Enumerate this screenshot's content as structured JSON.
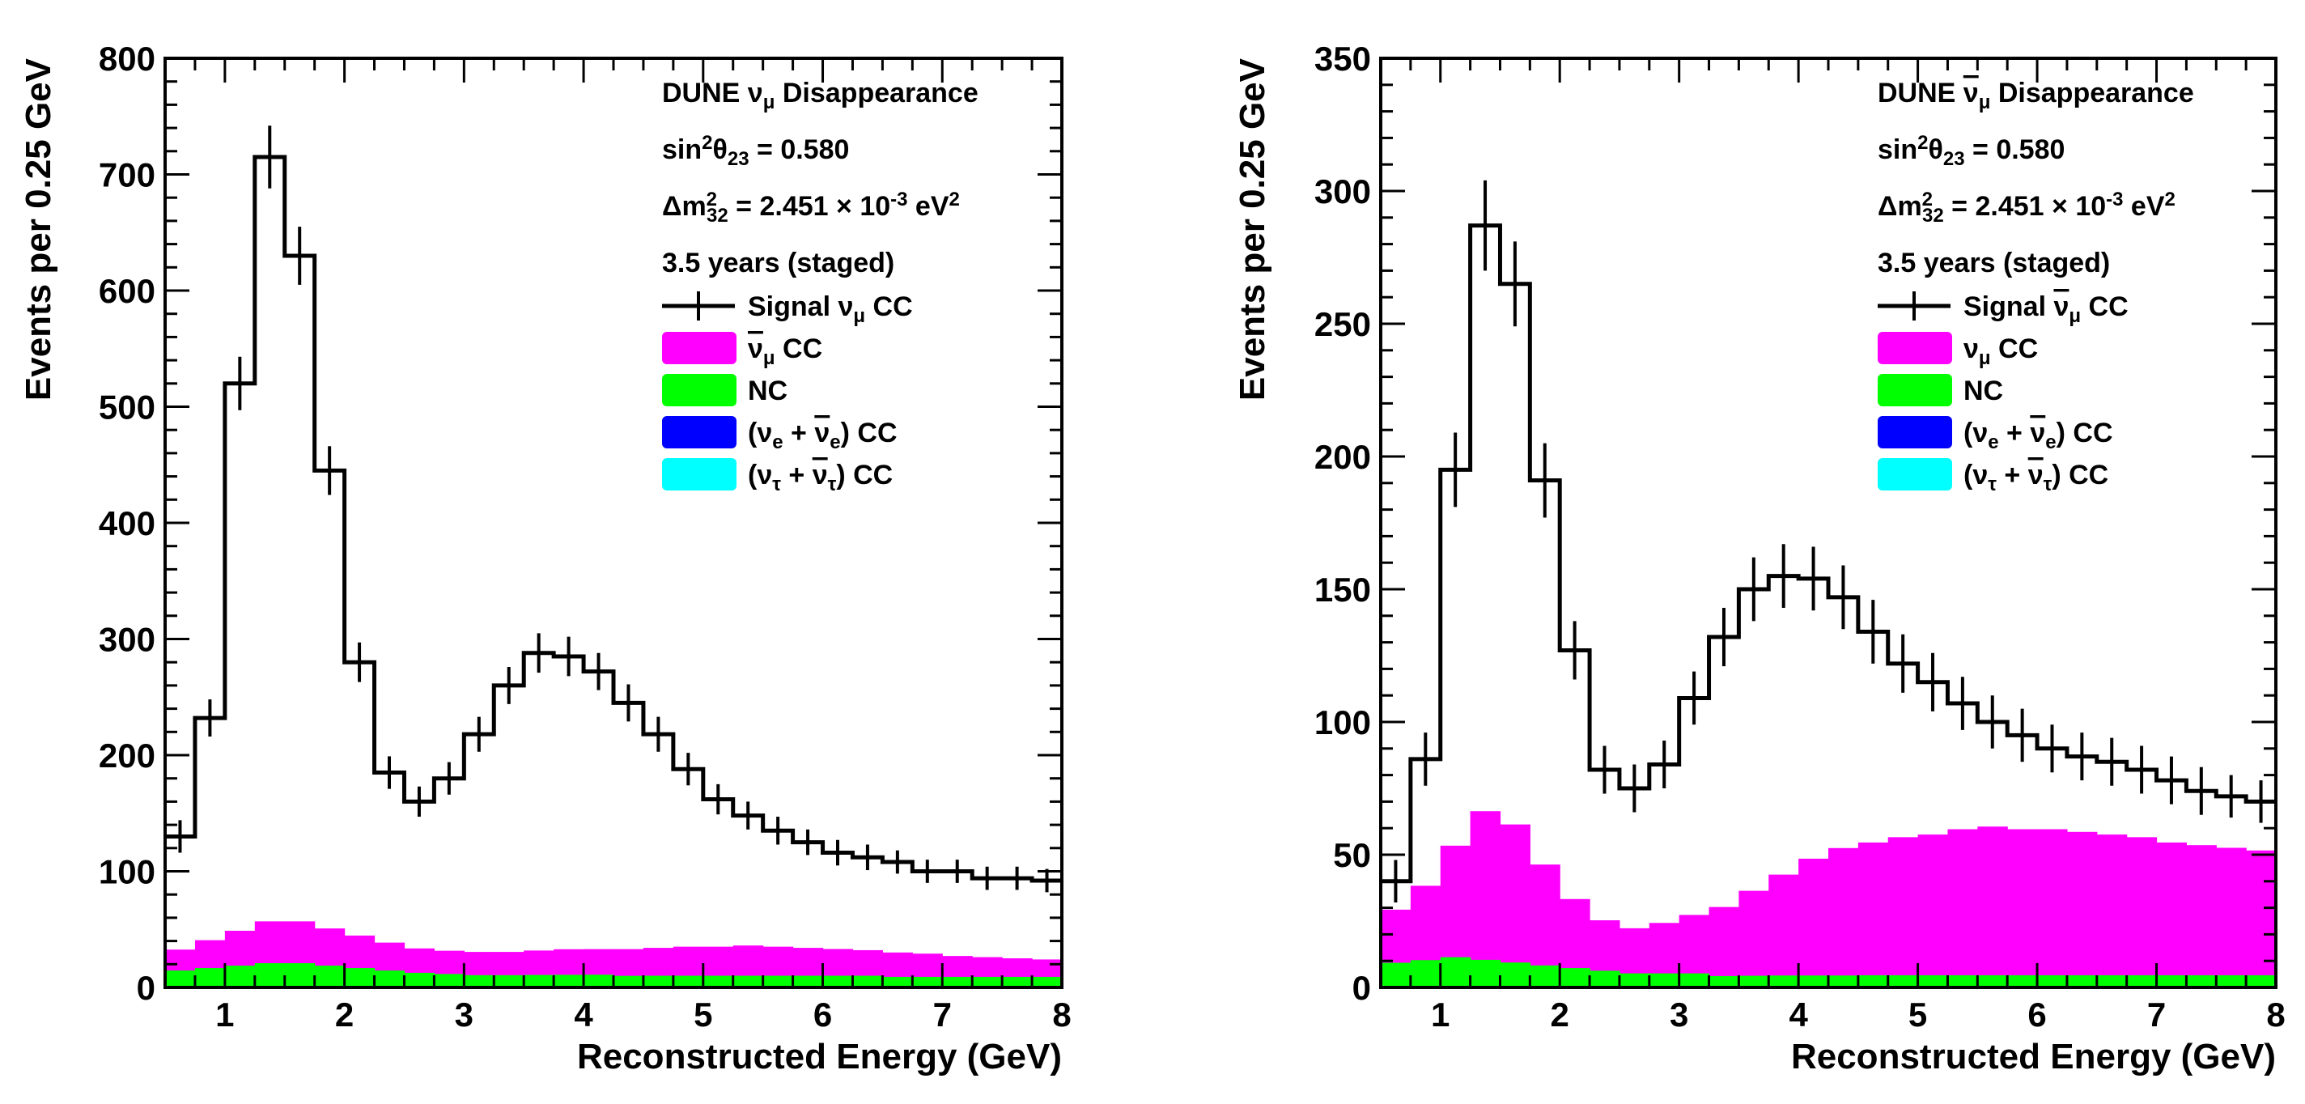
{
  "chart_data": [
    {
      "type": "bar",
      "title": "DUNE ν_μ Disappearance",
      "xlabel": "Reconstructed Energy (GeV)",
      "ylabel": "Events per 0.25 GeV",
      "xlim": [
        0.5,
        8
      ],
      "ylim": [
        0,
        800
      ],
      "x_ticks": [
        1,
        2,
        3,
        4,
        5,
        6,
        7,
        8
      ],
      "y_ticks": [
        0,
        100,
        200,
        300,
        400,
        500,
        600,
        700,
        800
      ],
      "bin_edges": [
        0.5,
        0.75,
        1.0,
        1.25,
        1.5,
        1.75,
        2.0,
        2.25,
        2.5,
        2.75,
        3.0,
        3.25,
        3.5,
        3.75,
        4.0,
        4.25,
        4.5,
        4.75,
        5.0,
        5.25,
        5.5,
        5.75,
        6.0,
        6.25,
        6.5,
        6.75,
        7.0,
        7.25,
        7.5,
        7.75,
        8.0
      ],
      "annotations": {
        "title": {
          "pre": "DUNE ",
          "sym": "ν",
          "sub": "μ",
          "post": " Disappearance",
          "bar": false
        },
        "sin2": {
          "pre": "sin",
          "sup": "2",
          "mid": "θ",
          "sub": "23",
          "post": " = 0.580"
        },
        "dm2": {
          "pre": "Δm",
          "sup": "2",
          "sub": "32",
          "mid": " = 2.451 × 10",
          "exp": "-3",
          "unit": " eV",
          "unit_sup": "2"
        },
        "exposure": "3.5 years (staged)"
      },
      "series": [
        {
          "name": "Signal ν_μ CC",
          "legend": {
            "pre": "Signal ",
            "sym": "ν",
            "sub": "μ",
            "post": " CC",
            "bar": false
          },
          "style": "errorbar-step",
          "color": "#000000",
          "values": [
            130,
            232,
            520,
            715,
            630,
            445,
            280,
            185,
            160,
            180,
            218,
            260,
            288,
            285,
            272,
            245,
            218,
            188,
            162,
            148,
            135,
            125,
            116,
            112,
            108,
            100,
            100,
            94,
            94,
            92
          ],
          "errors": [
            14,
            16,
            23,
            27,
            25,
            21,
            17,
            14,
            13,
            14,
            15,
            16,
            17,
            17,
            16,
            16,
            15,
            14,
            13,
            12,
            12,
            11,
            11,
            11,
            10,
            10,
            10,
            10,
            10,
            10
          ]
        },
        {
          "name": "ν̄_μ CC",
          "legend": {
            "pre": "",
            "sym": "ν",
            "sub": "μ",
            "post": " CC",
            "bar": true
          },
          "style": "filled",
          "color": "#ff00ff",
          "values": [
            18,
            24,
            30,
            36,
            36,
            32,
            28,
            24,
            21,
            20,
            20,
            20,
            21,
            22,
            22,
            23,
            24,
            25,
            25,
            26,
            25,
            24,
            23,
            22,
            21,
            20,
            18,
            17,
            16,
            15
          ]
        },
        {
          "name": "NC",
          "legend": {
            "pre": "NC",
            "sym": "",
            "sub": "",
            "post": "",
            "bar": false
          },
          "style": "filled",
          "color": "#00ff00",
          "values": [
            14,
            16,
            18,
            20,
            20,
            18,
            16,
            14,
            12,
            11,
            10,
            10,
            10,
            10,
            10,
            9,
            9,
            9,
            9,
            9,
            9,
            9,
            9,
            9,
            8,
            8,
            8,
            8,
            8,
            8
          ]
        },
        {
          "name": "(ν_e + ν̄_e) CC",
          "legend": {
            "pre": "(ν",
            "sub": "e",
            "mid": " + ",
            "sym": "ν",
            "sub2": "e",
            "post": ") CC"
          },
          "style": "filled",
          "color": "#0000ff",
          "values": [
            0.6,
            0.7,
            0.8,
            0.9,
            0.9,
            0.8,
            0.7,
            0.6,
            0.6,
            0.6,
            0.6,
            0.6,
            0.6,
            0.6,
            0.6,
            0.6,
            0.6,
            0.6,
            0.6,
            0.6,
            0.6,
            0.6,
            0.6,
            0.6,
            0.6,
            0.6,
            0.6,
            0.6,
            0.6,
            0.6
          ]
        },
        {
          "name": "(ν_τ + ν̄_τ) CC",
          "legend": {
            "pre": "(ν",
            "sub": "τ",
            "mid": " + ",
            "sym": "ν",
            "sub2": "τ",
            "post": ") CC"
          },
          "style": "filled",
          "color": "#00ffff",
          "values": [
            0,
            0,
            0,
            0,
            0,
            0,
            0,
            0,
            0,
            0,
            0,
            0,
            0.2,
            0.3,
            0.4,
            0.4,
            0.5,
            0.5,
            0.5,
            0.5,
            0.5,
            0.5,
            0.5,
            0.5,
            0.5,
            0.5,
            0.5,
            0.5,
            0.5,
            0.5
          ]
        }
      ]
    },
    {
      "type": "bar",
      "title": "DUNE ν̄_μ Disappearance",
      "xlabel": "Reconstructed Energy (GeV)",
      "ylabel": "Events per 0.25 GeV",
      "xlim": [
        0.5,
        8
      ],
      "ylim": [
        0,
        350
      ],
      "x_ticks": [
        1,
        2,
        3,
        4,
        5,
        6,
        7,
        8
      ],
      "y_ticks": [
        0,
        50,
        100,
        150,
        200,
        250,
        300,
        350
      ],
      "bin_edges": [
        0.5,
        0.75,
        1.0,
        1.25,
        1.5,
        1.75,
        2.0,
        2.25,
        2.5,
        2.75,
        3.0,
        3.25,
        3.5,
        3.75,
        4.0,
        4.25,
        4.5,
        4.75,
        5.0,
        5.25,
        5.5,
        5.75,
        6.0,
        6.25,
        6.5,
        6.75,
        7.0,
        7.25,
        7.5,
        7.75,
        8.0
      ],
      "annotations": {
        "title": {
          "pre": "DUNE ",
          "sym": "ν",
          "sub": "μ",
          "post": " Disappearance",
          "bar": true
        },
        "sin2": {
          "pre": "sin",
          "sup": "2",
          "mid": "θ",
          "sub": "23",
          "post": " = 0.580"
        },
        "dm2": {
          "pre": "Δm",
          "sup": "2",
          "sub": "32",
          "mid": " = 2.451 × 10",
          "exp": "-3",
          "unit": " eV",
          "unit_sup": "2"
        },
        "exposure": "3.5 years (staged)"
      },
      "series": [
        {
          "name": "Signal ν̄_μ CC",
          "legend": {
            "pre": "Signal ",
            "sym": "ν",
            "sub": "μ",
            "post": " CC",
            "bar": true
          },
          "style": "errorbar-step",
          "color": "#000000",
          "values": [
            40,
            86,
            195,
            287,
            265,
            191,
            127,
            82,
            75,
            84,
            109,
            132,
            150,
            155,
            154,
            147,
            134,
            122,
            115,
            107,
            100,
            95,
            90,
            87,
            85,
            82,
            78,
            74,
            72,
            70
          ],
          "errors": [
            8,
            10,
            14,
            17,
            16,
            14,
            11,
            9,
            9,
            9,
            10,
            11,
            12,
            12,
            12,
            12,
            12,
            11,
            11,
            10,
            10,
            10,
            9,
            9,
            9,
            9,
            9,
            9,
            8,
            8
          ]
        },
        {
          "name": "ν_μ CC",
          "legend": {
            "pre": "",
            "sym": "ν",
            "sub": "μ",
            "post": " CC",
            "bar": false
          },
          "style": "filled",
          "color": "#ff00ff",
          "values": [
            20,
            28,
            42,
            56,
            52,
            38,
            26,
            19,
            17,
            19,
            22,
            26,
            32,
            38,
            44,
            48,
            50,
            52,
            53,
            55,
            56,
            55,
            55,
            54,
            53,
            52,
            50,
            49,
            48,
            47
          ]
        },
        {
          "name": "NC",
          "legend": {
            "pre": "NC",
            "sym": "",
            "sub": "",
            "post": "",
            "bar": false
          },
          "style": "filled",
          "color": "#00ff00",
          "values": [
            9,
            10,
            11,
            10,
            9,
            8,
            7,
            6,
            5,
            5,
            5,
            4,
            4,
            4,
            4,
            4,
            4,
            4,
            4,
            4,
            4,
            4,
            4,
            4,
            4,
            4,
            4,
            4,
            4,
            4
          ]
        },
        {
          "name": "(ν_e + ν̄_e) CC",
          "legend": {
            "pre": "(ν",
            "sub": "e",
            "mid": " + ",
            "sym": "ν",
            "sub2": "e",
            "post": ") CC"
          },
          "style": "filled",
          "color": "#0000ff",
          "values": [
            0.3,
            0.3,
            0.4,
            0.4,
            0.4,
            0.3,
            0.3,
            0.3,
            0.3,
            0.3,
            0.3,
            0.3,
            0.3,
            0.3,
            0.3,
            0.3,
            0.3,
            0.3,
            0.3,
            0.3,
            0.3,
            0.3,
            0.3,
            0.3,
            0.3,
            0.3,
            0.3,
            0.3,
            0.3,
            0.3
          ]
        },
        {
          "name": "(ν_τ + ν̄_τ) CC",
          "legend": {
            "pre": "(ν",
            "sub": "τ",
            "mid": " + ",
            "sym": "ν",
            "sub2": "τ",
            "post": ") CC"
          },
          "style": "filled",
          "color": "#00ffff",
          "values": [
            0,
            0,
            0,
            0,
            0,
            0,
            0,
            0,
            0,
            0,
            0,
            0,
            0.1,
            0.2,
            0.2,
            0.2,
            0.3,
            0.3,
            0.3,
            0.3,
            0.3,
            0.3,
            0.3,
            0.3,
            0.3,
            0.3,
            0.3,
            0.3,
            0.3,
            0.3
          ]
        }
      ]
    }
  ]
}
